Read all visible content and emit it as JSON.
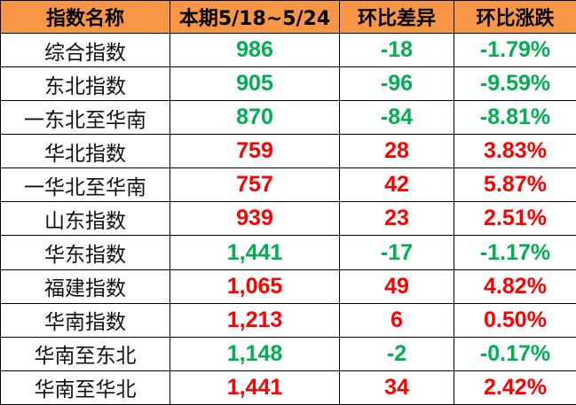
{
  "headers": [
    "指数名称",
    "本期5/18~5/24",
    "环比差异",
    "环比涨跌"
  ],
  "colors": {
    "header_bg": "#F79646",
    "up": "#FF0000",
    "down": "#00B050"
  },
  "rows": [
    {
      "name": "综合指数",
      "value": "986",
      "diff": "-18",
      "pct": "-1.79%",
      "trend": "down"
    },
    {
      "name": "东北指数",
      "value": "905",
      "diff": "-96",
      "pct": "-9.59%",
      "trend": "down"
    },
    {
      "name": "一东北至华南",
      "value": "870",
      "diff": "-84",
      "pct": "-8.81%",
      "trend": "down"
    },
    {
      "name": "华北指数",
      "value": "759",
      "diff": "28",
      "pct": "3.83%",
      "trend": "up"
    },
    {
      "name": "一华北至华南",
      "value": "757",
      "diff": "42",
      "pct": "5.87%",
      "trend": "up"
    },
    {
      "name": "山东指数",
      "value": "939",
      "diff": "23",
      "pct": "2.51%",
      "trend": "up"
    },
    {
      "name": "华东指数",
      "value": "1,441",
      "diff": "-17",
      "pct": "-1.17%",
      "trend": "down"
    },
    {
      "name": "福建指数",
      "value": "1,065",
      "diff": "49",
      "pct": "4.82%",
      "trend": "up"
    },
    {
      "name": "华南指数",
      "value": "1,213",
      "diff": "6",
      "pct": "0.50%",
      "trend": "up"
    },
    {
      "name": "华南至东北",
      "value": "1,148",
      "diff": "-2",
      "pct": "-0.17%",
      "trend": "down"
    },
    {
      "name": "华南至华北",
      "value": "1,441",
      "diff": "34",
      "pct": "2.42%",
      "trend": "up"
    }
  ]
}
